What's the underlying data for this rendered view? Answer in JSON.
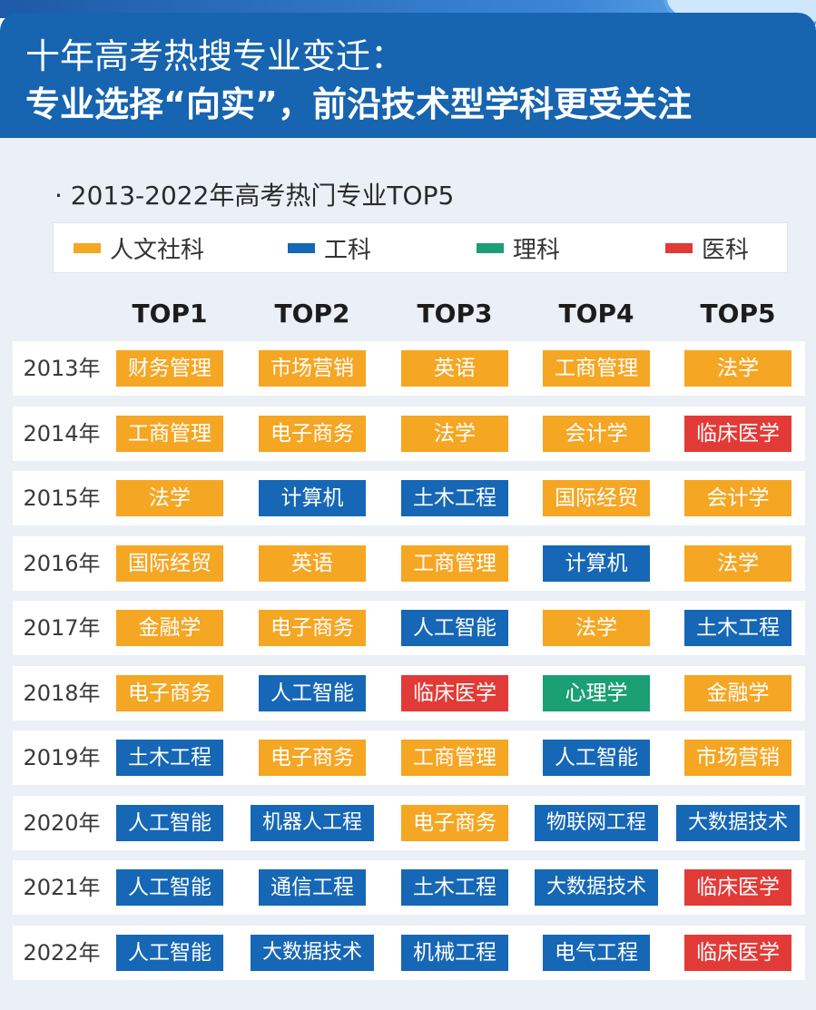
{
  "header": {
    "title": "十年高考热搜专业变迁：",
    "subtitle": "专业选择“向实”，前沿技术型学科更受关注"
  },
  "chart_data": {
    "type": "table",
    "title": "· 2013-2022年高考热门专业TOP5",
    "legend": [
      {
        "key": "humanities",
        "label": "人文社科",
        "color": "#f5a623"
      },
      {
        "key": "engineering",
        "label": "工科",
        "color": "#1667b5"
      },
      {
        "key": "science",
        "label": "理科",
        "color": "#1aa072"
      },
      {
        "key": "medicine",
        "label": "医科",
        "color": "#e23a36"
      }
    ],
    "columns": [
      "TOP1",
      "TOP2",
      "TOP3",
      "TOP4",
      "TOP5"
    ],
    "rows": [
      {
        "year": "2013年",
        "cells": [
          {
            "text": "财务管理",
            "cat": "humanities"
          },
          {
            "text": "市场营销",
            "cat": "humanities"
          },
          {
            "text": "英语",
            "cat": "humanities"
          },
          {
            "text": "工商管理",
            "cat": "humanities"
          },
          {
            "text": "法学",
            "cat": "humanities"
          }
        ]
      },
      {
        "year": "2014年",
        "cells": [
          {
            "text": "工商管理",
            "cat": "humanities"
          },
          {
            "text": "电子商务",
            "cat": "humanities"
          },
          {
            "text": "法学",
            "cat": "humanities"
          },
          {
            "text": "会计学",
            "cat": "humanities"
          },
          {
            "text": "临床医学",
            "cat": "medicine"
          }
        ]
      },
      {
        "year": "2015年",
        "cells": [
          {
            "text": "法学",
            "cat": "humanities"
          },
          {
            "text": "计算机",
            "cat": "engineering"
          },
          {
            "text": "土木工程",
            "cat": "engineering"
          },
          {
            "text": "国际经贸",
            "cat": "humanities"
          },
          {
            "text": "会计学",
            "cat": "humanities"
          }
        ]
      },
      {
        "year": "2016年",
        "cells": [
          {
            "text": "国际经贸",
            "cat": "humanities"
          },
          {
            "text": "英语",
            "cat": "humanities"
          },
          {
            "text": "工商管理",
            "cat": "humanities"
          },
          {
            "text": "计算机",
            "cat": "engineering"
          },
          {
            "text": "法学",
            "cat": "humanities"
          }
        ]
      },
      {
        "year": "2017年",
        "cells": [
          {
            "text": "金融学",
            "cat": "humanities"
          },
          {
            "text": "电子商务",
            "cat": "humanities"
          },
          {
            "text": "人工智能",
            "cat": "engineering"
          },
          {
            "text": "法学",
            "cat": "humanities"
          },
          {
            "text": "土木工程",
            "cat": "engineering"
          }
        ]
      },
      {
        "year": "2018年",
        "cells": [
          {
            "text": "电子商务",
            "cat": "humanities"
          },
          {
            "text": "人工智能",
            "cat": "engineering"
          },
          {
            "text": "临床医学",
            "cat": "medicine"
          },
          {
            "text": "心理学",
            "cat": "science"
          },
          {
            "text": "金融学",
            "cat": "humanities"
          }
        ]
      },
      {
        "year": "2019年",
        "cells": [
          {
            "text": "土木工程",
            "cat": "engineering"
          },
          {
            "text": "电子商务",
            "cat": "humanities"
          },
          {
            "text": "工商管理",
            "cat": "humanities"
          },
          {
            "text": "人工智能",
            "cat": "engineering"
          },
          {
            "text": "市场营销",
            "cat": "humanities"
          }
        ]
      },
      {
        "year": "2020年",
        "cells": [
          {
            "text": "人工智能",
            "cat": "engineering"
          },
          {
            "text": "机器人工程",
            "cat": "engineering"
          },
          {
            "text": "电子商务",
            "cat": "humanities"
          },
          {
            "text": "物联网工程",
            "cat": "engineering"
          },
          {
            "text": "大数据技术",
            "cat": "engineering"
          }
        ]
      },
      {
        "year": "2021年",
        "cells": [
          {
            "text": "人工智能",
            "cat": "engineering"
          },
          {
            "text": "通信工程",
            "cat": "engineering"
          },
          {
            "text": "土木工程",
            "cat": "engineering"
          },
          {
            "text": "大数据技术",
            "cat": "engineering"
          },
          {
            "text": "临床医学",
            "cat": "medicine"
          }
        ]
      },
      {
        "year": "2022年",
        "cells": [
          {
            "text": "人工智能",
            "cat": "engineering"
          },
          {
            "text": "大数据技术",
            "cat": "engineering"
          },
          {
            "text": "机械工程",
            "cat": "engineering"
          },
          {
            "text": "电气工程",
            "cat": "engineering"
          },
          {
            "text": "临床医学",
            "cat": "medicine"
          }
        ]
      }
    ]
  }
}
